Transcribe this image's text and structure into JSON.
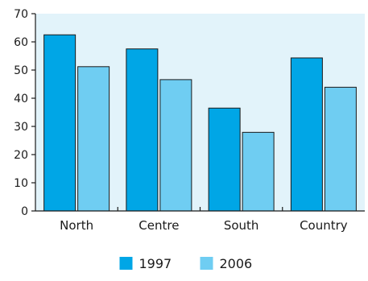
{
  "chart_data": {
    "type": "bar",
    "categories": [
      "North",
      "Centre",
      "South",
      "Country"
    ],
    "series": [
      {
        "name": "1997",
        "values": [
          62.5,
          57.5,
          36.5,
          54.3
        ],
        "color": "#00a6e6"
      },
      {
        "name": "2006",
        "values": [
          51.2,
          46.6,
          27.9,
          43.9
        ],
        "color": "#6fcdf2"
      }
    ],
    "ylim": [
      0,
      70
    ],
    "yticks": [
      0,
      10,
      20,
      30,
      40,
      50,
      60,
      70
    ],
    "grid": false,
    "plot_background": "#e2f3fa",
    "legend_position": "bottom-center",
    "title": "",
    "xlabel": "",
    "ylabel": ""
  }
}
